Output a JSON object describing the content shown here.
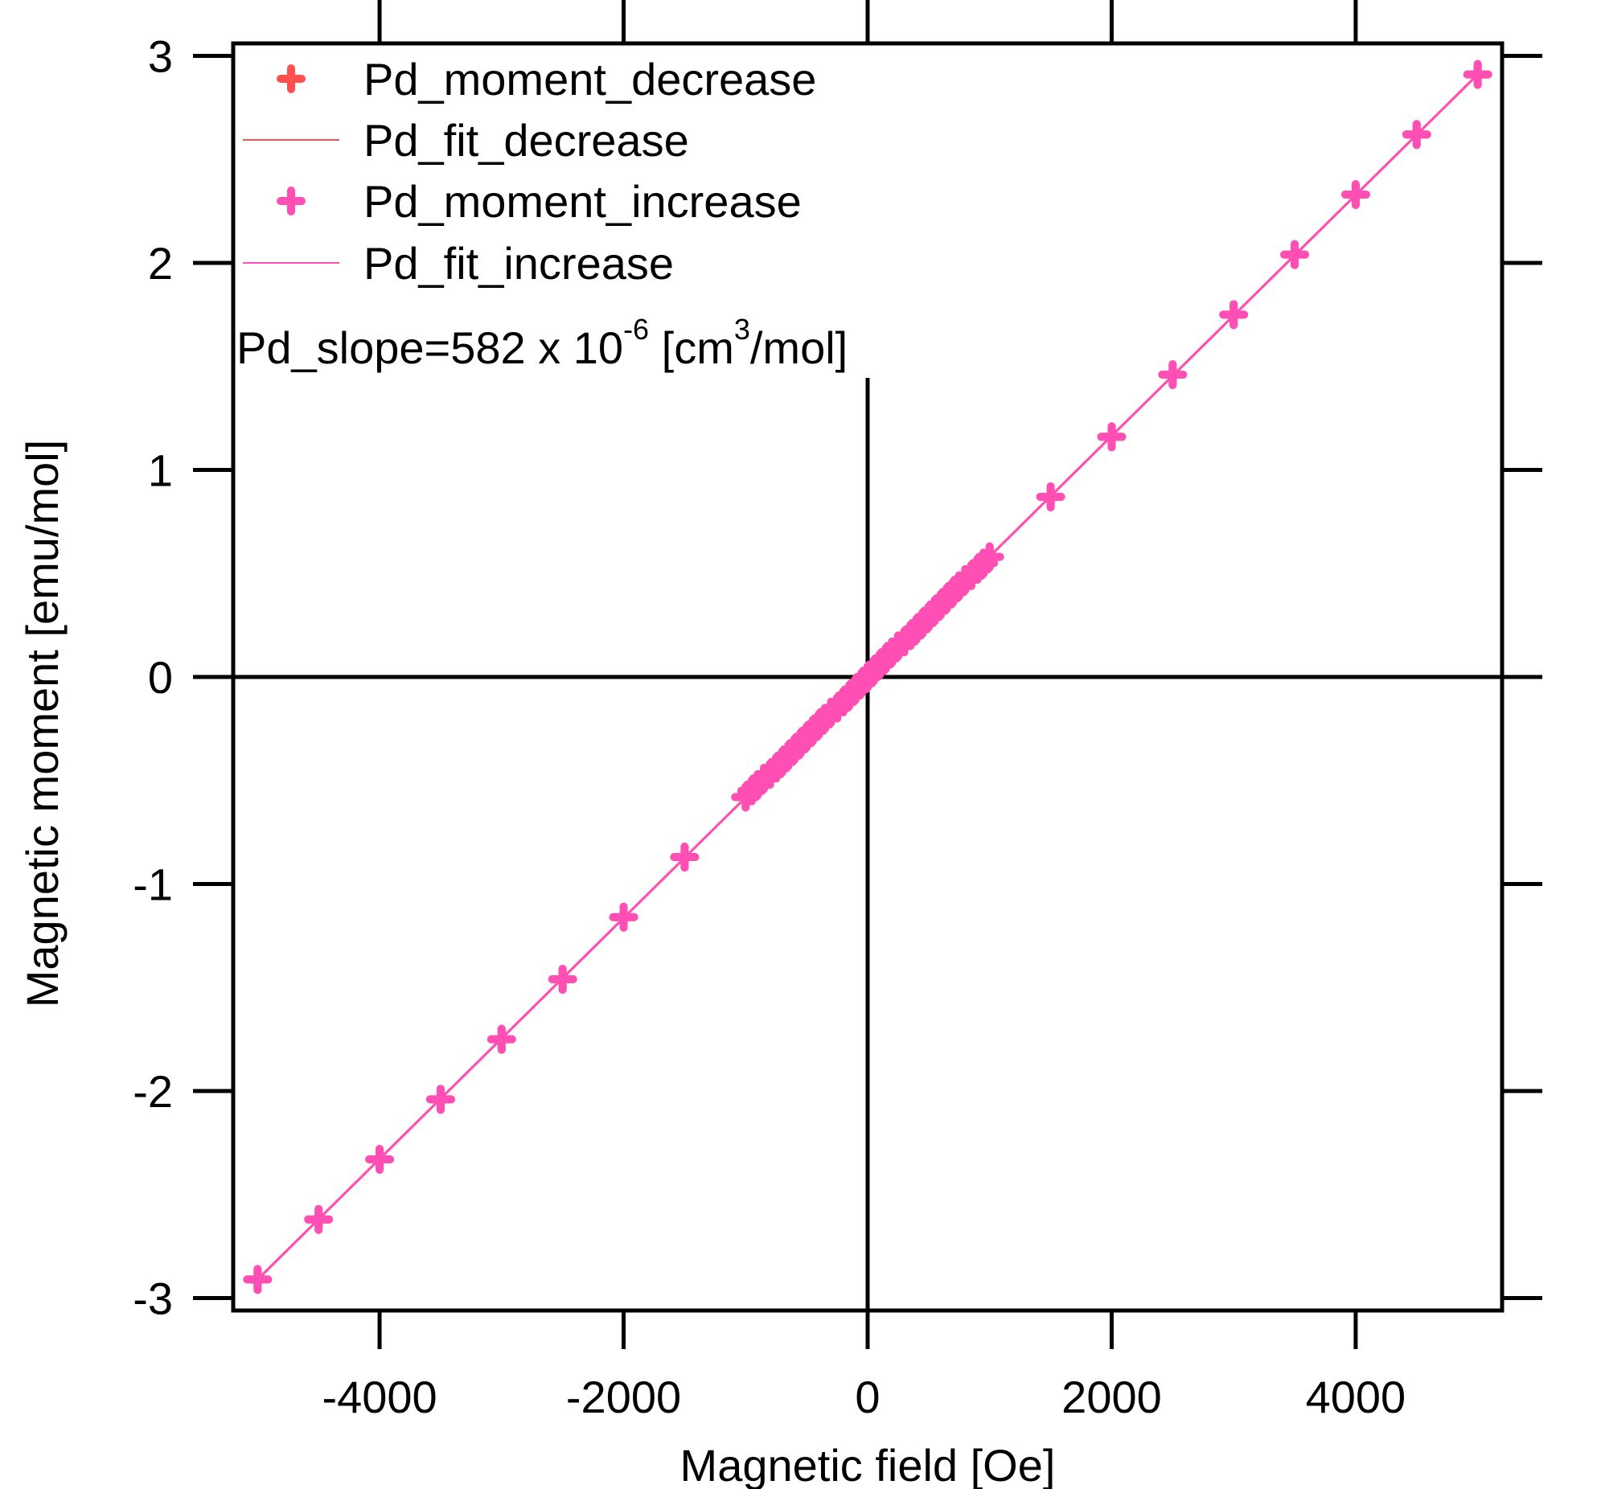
{
  "chart_data": {
    "type": "scatter",
    "xlabel": "Magnetic field [Oe]",
    "ylabel": "Magnetic moment [emu/mol]",
    "xlim": [
      -5200,
      5200
    ],
    "ylim": [
      -3.06,
      3.06
    ],
    "x_ticks": [
      -4000,
      -2000,
      0,
      2000,
      4000
    ],
    "y_ticks": [
      -3,
      -2,
      -1,
      0,
      1,
      2,
      3
    ],
    "x_tick_labels": [
      "-4000",
      "-2000",
      "0",
      "2000",
      "4000"
    ],
    "y_tick_labels": [
      "-3",
      "-2",
      "-1",
      "0",
      "1",
      "2",
      "3"
    ],
    "grid": false,
    "zero_lines": true,
    "legend_position": "top-left",
    "annotation": {
      "prefix": "Pd_slope=582 x 10",
      "exp": "-6",
      "mid": " [cm",
      "unit_exp": "3",
      "suffix": "/mol]"
    },
    "series": [
      {
        "name": "Pd_moment_decrease",
        "kind": "markers",
        "color": "#FF4F4F",
        "x": [
          5000,
          4500,
          4000,
          3500,
          3000,
          2500,
          2000,
          1500,
          1000,
          950,
          900,
          850,
          800,
          750,
          700,
          650,
          600,
          550,
          500,
          450,
          400,
          350,
          300,
          250,
          200,
          150,
          100,
          50,
          0,
          -50,
          -100,
          -150,
          -200,
          -250,
          -300,
          -350,
          -400,
          -450,
          -500,
          -550,
          -600,
          -650,
          -700,
          -750,
          -800,
          -850,
          -900,
          -950,
          -1000,
          -1500,
          -2000,
          -2500,
          -3000,
          -3500,
          -4000,
          -4500,
          -5000
        ],
        "y": [
          2.91,
          2.62,
          2.33,
          2.04,
          1.75,
          1.46,
          1.16,
          0.87,
          0.58,
          0.55,
          0.52,
          0.49,
          0.47,
          0.44,
          0.41,
          0.38,
          0.35,
          0.32,
          0.29,
          0.26,
          0.23,
          0.2,
          0.17,
          0.15,
          0.12,
          0.09,
          0.06,
          0.03,
          0,
          -0.03,
          -0.06,
          -0.09,
          -0.12,
          -0.15,
          -0.17,
          -0.2,
          -0.23,
          -0.26,
          -0.29,
          -0.32,
          -0.35,
          -0.38,
          -0.41,
          -0.44,
          -0.47,
          -0.49,
          -0.52,
          -0.55,
          -0.58,
          -0.87,
          -1.16,
          -1.46,
          -1.75,
          -2.04,
          -2.33,
          -2.62,
          -2.91
        ]
      },
      {
        "name": "Pd_fit_decrease",
        "kind": "line",
        "color": "#FF4F4F",
        "x": [
          -5000,
          5000
        ],
        "y": [
          -2.91,
          2.91
        ]
      },
      {
        "name": "Pd_moment_increase",
        "kind": "markers",
        "color": "#FF4FB4",
        "x": [
          -5000,
          -4500,
          -4000,
          -3500,
          -3000,
          -2500,
          -2000,
          -1500,
          -1000,
          -950,
          -900,
          -850,
          -800,
          -750,
          -700,
          -650,
          -600,
          -550,
          -500,
          -450,
          -400,
          -350,
          -300,
          -250,
          -200,
          -150,
          -100,
          -50,
          0,
          50,
          100,
          150,
          200,
          250,
          300,
          350,
          400,
          450,
          500,
          550,
          600,
          650,
          700,
          750,
          800,
          850,
          900,
          950,
          1000,
          1500,
          2000,
          2500,
          3000,
          3500,
          4000,
          4500,
          5000
        ],
        "y": [
          -2.91,
          -2.62,
          -2.33,
          -2.04,
          -1.75,
          -1.46,
          -1.16,
          -0.87,
          -0.58,
          -0.55,
          -0.52,
          -0.49,
          -0.47,
          -0.44,
          -0.41,
          -0.38,
          -0.35,
          -0.32,
          -0.29,
          -0.26,
          -0.23,
          -0.2,
          -0.17,
          -0.15,
          -0.12,
          -0.09,
          -0.06,
          -0.03,
          0,
          0.03,
          0.06,
          0.09,
          0.12,
          0.15,
          0.17,
          0.2,
          0.23,
          0.26,
          0.29,
          0.32,
          0.35,
          0.38,
          0.41,
          0.44,
          0.47,
          0.49,
          0.52,
          0.55,
          0.58,
          0.87,
          1.16,
          1.46,
          1.75,
          2.04,
          2.33,
          2.62,
          2.91
        ]
      },
      {
        "name": "Pd_fit_increase",
        "kind": "line",
        "color": "#FF4FB4",
        "x": [
          -5000,
          5000
        ],
        "y": [
          -2.91,
          2.91
        ]
      }
    ]
  }
}
